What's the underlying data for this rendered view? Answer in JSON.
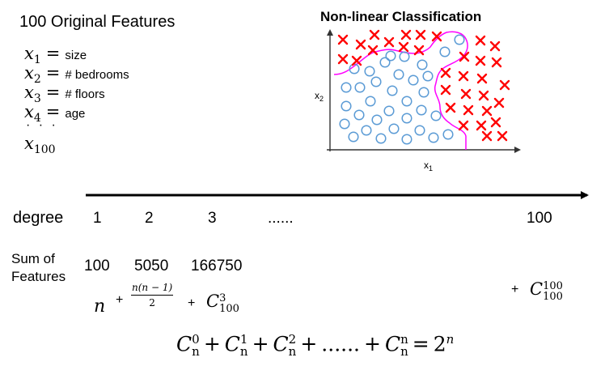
{
  "features": {
    "title": "100 Original Features",
    "items": [
      {
        "var": "x",
        "sub": "1",
        "name": "size"
      },
      {
        "var": "x",
        "sub": "2",
        "name": "# bedrooms"
      },
      {
        "var": "x",
        "sub": "3",
        "name": "# floors"
      },
      {
        "var": "x",
        "sub": "4",
        "name": "age"
      }
    ],
    "ellipsis": "· · ·",
    "last": {
      "var": "x",
      "sub": "100"
    }
  },
  "plot": {
    "title": "Non-linear Classification",
    "xlabel": "x",
    "xlabel_sub": "1",
    "ylabel": "x",
    "ylabel_sub": "2",
    "circle_color": "#5b9bd5",
    "cross_color": "#ff0000",
    "boundary_color": "#ff00ff"
  },
  "axis": {
    "label": "degree",
    "ticks": [
      "1",
      "2",
      "3",
      "......",
      "100"
    ]
  },
  "sum": {
    "label_line1": "Sum of",
    "label_line2": "Features",
    "values": [
      "100",
      "5050",
      "166750"
    ]
  },
  "expr": {
    "n": "n",
    "plus": "+",
    "frac_num": "n(n − 1)",
    "frac_den": "2",
    "c": "C",
    "c3_sup": "3",
    "c3_sub": "100",
    "c100_sup": "100",
    "c100_sub": "100"
  },
  "formula": {
    "c": "C",
    "terms": [
      {
        "sup": "0",
        "sub": "n"
      },
      {
        "sup": "1",
        "sub": "n"
      },
      {
        "sup": "2",
        "sub": "n"
      }
    ],
    "ellipsis": "......",
    "last_sup": "n",
    "last_sub": "n",
    "plus": "+",
    "eq": "=",
    "rhs": "2",
    "rhs_sup": "n"
  }
}
